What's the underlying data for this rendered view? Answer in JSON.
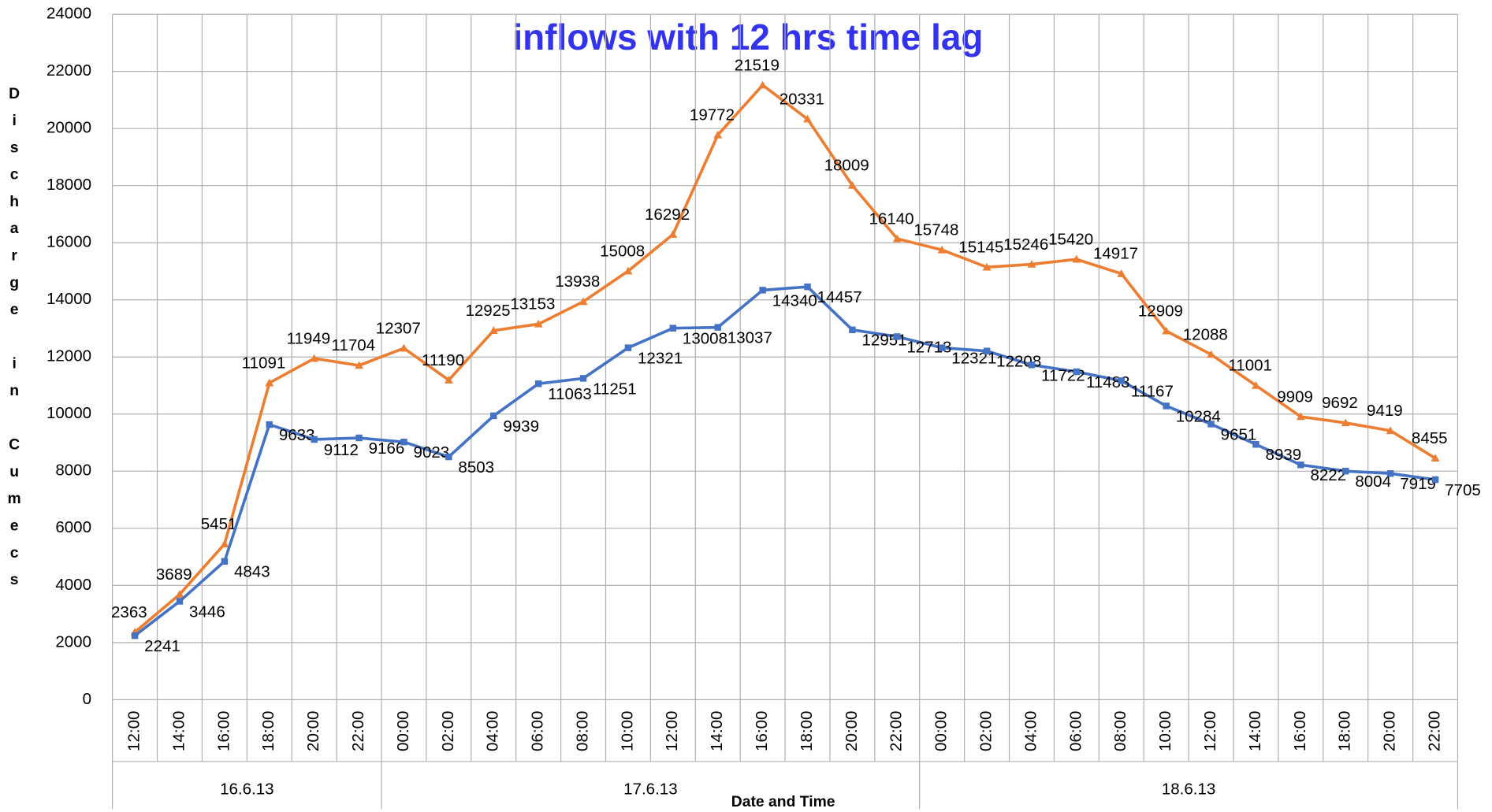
{
  "chart_data": {
    "type": "line",
    "title": "inflows with 12 hrs time lag",
    "y_label": "Discharge in Cumecs",
    "x_label": "Date and Time",
    "groups": [
      {
        "label": "16.6.13",
        "categories": [
          "12:00",
          "14:00",
          "16:00",
          "18:00",
          "20:00",
          "22:00"
        ]
      },
      {
        "label": "17.6.13",
        "categories": [
          "00:00",
          "02:00",
          "04:00",
          "06:00",
          "08:00",
          "10:00",
          "12:00",
          "14:00",
          "16:00",
          "18:00",
          "20:00",
          "22:00"
        ]
      },
      {
        "label": "18.6.13",
        "categories": [
          "00:00",
          "02:00",
          "04:00",
          "06:00",
          "08:00",
          "10:00",
          "12:00",
          "14:00",
          "16:00",
          "18:00",
          "20:00",
          "22:00"
        ]
      }
    ],
    "series": [
      {
        "color": "#ed7d31",
        "marker": "triangle",
        "values": [
          2363,
          3689,
          5451,
          11091,
          11949,
          11704,
          12307,
          11190,
          12925,
          13153,
          13938,
          15008,
          16292,
          19772,
          21519,
          20331,
          18009,
          16140,
          15748,
          15145,
          15246,
          15420,
          14917,
          12909,
          12088,
          11001,
          9909,
          9692,
          9419,
          8455
        ]
      },
      {
        "color": "#4472c4",
        "marker": "square",
        "values": [
          2241,
          3446,
          4843,
          9633,
          9112,
          9166,
          9023,
          8503,
          9939,
          11063,
          11251,
          12321,
          13008,
          13037,
          14340,
          14457,
          12951,
          12713,
          12321,
          12208,
          11722,
          11483,
          11167,
          10284,
          9651,
          8939,
          8222,
          8004,
          7919,
          7705
        ]
      }
    ],
    "ylim": [
      0,
      24000
    ],
    "yticks": [
      0,
      2000,
      4000,
      6000,
      8000,
      10000,
      12000,
      14000,
      16000,
      18000,
      20000,
      22000,
      24000
    ],
    "grid": true
  }
}
